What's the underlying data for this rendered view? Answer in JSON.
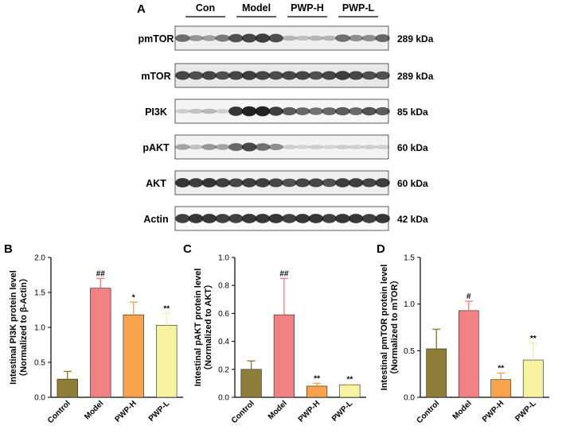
{
  "panel_a": {
    "letter": "A",
    "groups": [
      "Con",
      "Model",
      "PWP-H",
      "PWP-L"
    ],
    "blots": [
      {
        "label": "pmTOR",
        "kda": "289 kDa",
        "int": [
          0.55,
          0.35,
          0.3,
          0.5,
          0.7,
          0.75,
          0.8,
          0.72,
          0.2,
          0.15,
          0.2,
          0.2,
          0.55,
          0.4,
          0.4,
          0.6
        ],
        "bg": "#efefef"
      },
      {
        "label": "mTOR",
        "kda": "289 kDa",
        "int": [
          0.75,
          0.7,
          0.75,
          0.7,
          0.75,
          0.8,
          0.75,
          0.72,
          0.75,
          0.75,
          0.7,
          0.75,
          0.8,
          0.75,
          0.7,
          0.7
        ],
        "bg": "#e8e8e8"
      },
      {
        "label": "PI3K",
        "kda": "85 kDa",
        "int": [
          0.1,
          0.15,
          0.2,
          0.1,
          0.85,
          0.95,
          0.95,
          0.8,
          0.65,
          0.6,
          0.55,
          0.6,
          0.65,
          0.6,
          0.7,
          0.65
        ],
        "bg": "#f5f5f5"
      },
      {
        "label": "pAKT",
        "kda": "60 kDa",
        "int": [
          0.3,
          0.15,
          0.35,
          0.3,
          0.6,
          0.75,
          0.55,
          0.4,
          0.1,
          0.05,
          0.1,
          0.05,
          0.1,
          0.08,
          0.1,
          0.08
        ],
        "bg": "#f3f3f3"
      },
      {
        "label": "AKT",
        "kda": "60 kDa",
        "int": [
          0.85,
          0.8,
          0.85,
          0.8,
          0.75,
          0.8,
          0.8,
          0.75,
          0.7,
          0.75,
          0.75,
          0.7,
          0.8,
          0.8,
          0.75,
          0.8
        ],
        "bg": "#efefef"
      },
      {
        "label": "Actin",
        "kda": "42 kDa",
        "int": [
          0.8,
          0.85,
          0.85,
          0.8,
          0.8,
          0.85,
          0.85,
          0.85,
          0.8,
          0.85,
          0.85,
          0.8,
          0.85,
          0.85,
          0.8,
          0.85
        ],
        "bg": "#fafafa"
      }
    ]
  },
  "chart_data": [
    {
      "type": "bar",
      "letter": "B",
      "categories": [
        "Control",
        "Model",
        "PWP-H",
        "PWP-L"
      ],
      "values": [
        0.26,
        1.56,
        1.18,
        1.03
      ],
      "errors": [
        0.11,
        0.14,
        0.18,
        0.17
      ],
      "significance": [
        "",
        "##",
        "*",
        "**"
      ],
      "ylabel": "Intestinal PI3K protein level",
      "ylabel2": "（Normalized to β-Actin）",
      "ylim": [
        0,
        2.0
      ],
      "yticks": [
        "0.0",
        "0.5",
        "1.0",
        "1.5",
        "2.0"
      ]
    },
    {
      "type": "bar",
      "letter": "C",
      "categories": [
        "Control",
        "Model",
        "PWP-H",
        "PWP-L"
      ],
      "values": [
        0.2,
        0.59,
        0.08,
        0.09
      ],
      "errors": [
        0.06,
        0.26,
        0.02,
        0.005
      ],
      "significance": [
        "",
        "##",
        "**",
        "**"
      ],
      "ylabel": "Intestinal pAKT protein level",
      "ylabel2": "（Normalized to AKT）",
      "ylim": [
        0,
        1.0
      ],
      "yticks": [
        "0.0",
        "0.2",
        "0.4",
        "0.6",
        "0.8",
        "1.0"
      ]
    },
    {
      "type": "bar",
      "letter": "D",
      "categories": [
        "Control",
        "Model",
        "PWP-H",
        "PWP-L"
      ],
      "values": [
        0.52,
        0.93,
        0.19,
        0.4
      ],
      "errors": [
        0.21,
        0.1,
        0.07,
        0.18
      ],
      "significance": [
        "",
        "#",
        "**",
        "**"
      ],
      "ylabel": "Intestinal pmTOR protein level",
      "ylabel2": "（Normalized to mTOR）",
      "ylim": [
        0,
        1.5
      ],
      "yticks": [
        "0.0",
        "0.5",
        "1.0",
        "1.5"
      ]
    }
  ],
  "colors": {
    "bars": [
      "#8f7d3a",
      "#f08283",
      "#f7a24c",
      "#f6f2a0"
    ],
    "band": "#111111"
  }
}
